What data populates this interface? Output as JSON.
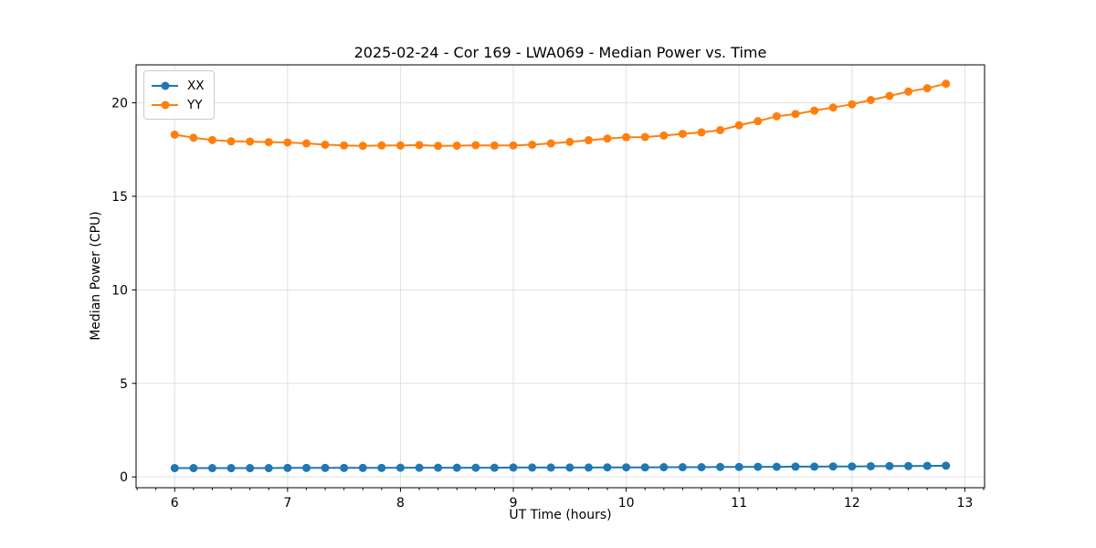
{
  "chart_data": {
    "type": "line",
    "title": "2025-02-24 - Cor 169 - LWA069 - Median Power vs. Time",
    "xlabel": "UT Time (hours)",
    "ylabel": "Median Power (CPU)",
    "x": [
      6.0,
      6.167,
      6.333,
      6.5,
      6.667,
      6.833,
      7.0,
      7.167,
      7.333,
      7.5,
      7.667,
      7.833,
      8.0,
      8.167,
      8.333,
      8.5,
      8.667,
      8.833,
      9.0,
      9.167,
      9.333,
      9.5,
      9.667,
      9.833,
      10.0,
      10.167,
      10.333,
      10.5,
      10.667,
      10.833,
      11.0,
      11.167,
      11.333,
      11.5,
      11.667,
      11.833,
      12.0,
      12.167,
      12.333,
      12.5,
      12.667,
      12.833
    ],
    "series": [
      {
        "name": "XX",
        "color": "#1f77b4",
        "values": [
          0.47,
          0.47,
          0.47,
          0.47,
          0.47,
          0.47,
          0.48,
          0.48,
          0.48,
          0.48,
          0.48,
          0.48,
          0.49,
          0.49,
          0.49,
          0.49,
          0.49,
          0.49,
          0.5,
          0.5,
          0.5,
          0.5,
          0.5,
          0.51,
          0.51,
          0.51,
          0.52,
          0.52,
          0.52,
          0.53,
          0.53,
          0.54,
          0.54,
          0.55,
          0.55,
          0.56,
          0.56,
          0.57,
          0.58,
          0.58,
          0.59,
          0.6
        ]
      },
      {
        "name": "YY",
        "color": "#ff7f0e",
        "values": [
          18.3,
          18.13,
          18.01,
          17.94,
          17.93,
          17.9,
          17.88,
          17.83,
          17.76,
          17.72,
          17.7,
          17.72,
          17.72,
          17.74,
          17.7,
          17.71,
          17.73,
          17.72,
          17.72,
          17.76,
          17.83,
          17.91,
          18.0,
          18.09,
          18.16,
          18.17,
          18.25,
          18.34,
          18.42,
          18.54,
          18.8,
          19.02,
          19.28,
          19.4,
          19.58,
          19.75,
          19.92,
          20.15,
          20.37,
          20.6,
          20.78,
          21.02
        ]
      }
    ],
    "xticks": [
      6,
      7,
      8,
      9,
      10,
      11,
      12,
      13
    ],
    "yticks": [
      0,
      5,
      10,
      15,
      20
    ],
    "x_minor_step": 0.16667,
    "xlim": [
      5.658,
      13.175
    ],
    "ylim": [
      -0.578,
      22.03
    ],
    "grid": true,
    "grid_color": "#e0e0e0",
    "axis_color": "#000000",
    "legend_position": "upper left",
    "marker": "o"
  }
}
